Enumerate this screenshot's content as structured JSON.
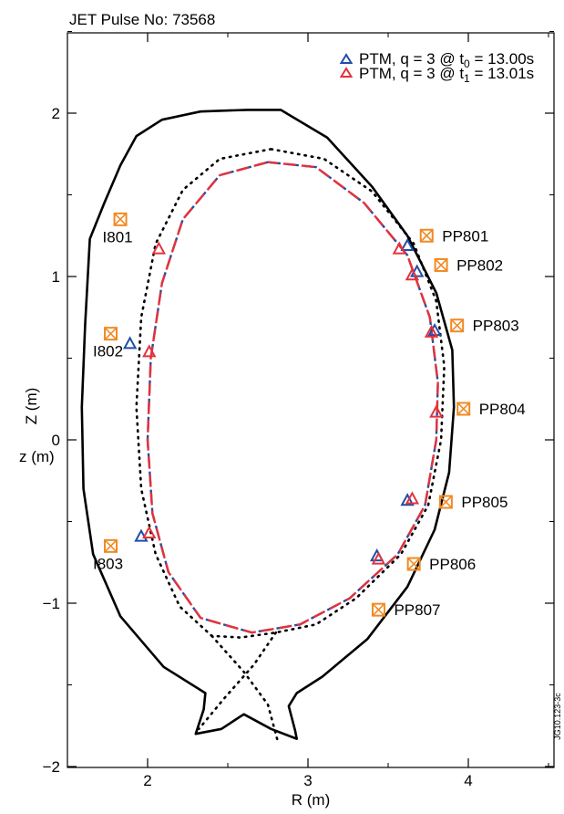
{
  "chart_data": {
    "type": "scatter",
    "title": "JET Pulse No: 73568",
    "xlabel": "R (m)",
    "ylabel": "Z (m)",
    "ylabel_overlay": "z (m)",
    "watermark": "JG10.123-3c",
    "xlim": [
      1.5,
      4.55
    ],
    "ylim": [
      -2.0,
      2.5
    ],
    "x_ticks": [
      2,
      3,
      4
    ],
    "y_ticks": [
      -2,
      -1,
      0,
      1,
      2
    ],
    "grid": false,
    "legend_position": "top-right",
    "colors": {
      "t0": "#1f4fa8",
      "t1": "#e3323c",
      "coil": "#f08a24",
      "wall": "#000000"
    },
    "series": [
      {
        "name": "PTM, q = 3 @ t0 = 13.00s",
        "legend_text": "PTM, q = 3 @ t",
        "legend_sub": "0",
        "legend_tail": " = 13.00s",
        "marker": "triangle",
        "color": "#1f4fa8",
        "points": [
          [
            3.62,
            1.19
          ],
          [
            3.68,
            1.03
          ],
          [
            3.79,
            0.67
          ],
          [
            1.89,
            0.59
          ],
          [
            3.62,
            -0.37
          ],
          [
            1.96,
            -0.59
          ],
          [
            3.43,
            -0.71
          ]
        ]
      },
      {
        "name": "PTM, q = 3 @ t1 = 13.01s",
        "legend_text": "PTM, q = 3 @ t",
        "legend_sub": "1",
        "legend_tail": " = 13.01s",
        "marker": "triangle",
        "color": "#e3323c",
        "points": [
          [
            2.07,
            1.17
          ],
          [
            3.57,
            1.17
          ],
          [
            3.65,
            1.01
          ],
          [
            3.77,
            0.66
          ],
          [
            2.01,
            0.54
          ],
          [
            3.8,
            0.17
          ],
          [
            3.65,
            -0.36
          ],
          [
            2.01,
            -0.57
          ],
          [
            3.44,
            -0.73
          ]
        ]
      }
    ],
    "coils": [
      {
        "label": "I801",
        "r": 1.83,
        "z": 1.35
      },
      {
        "label": "I802",
        "r": 1.77,
        "z": 0.65
      },
      {
        "label": "I803",
        "r": 1.77,
        "z": -0.65
      },
      {
        "label": "PP801",
        "r": 3.74,
        "z": 1.25
      },
      {
        "label": "PP802",
        "r": 3.83,
        "z": 1.07
      },
      {
        "label": "PP803",
        "r": 3.93,
        "z": 0.7
      },
      {
        "label": "PP804",
        "r": 3.97,
        "z": 0.19
      },
      {
        "label": "PP805",
        "r": 3.86,
        "z": -0.38
      },
      {
        "label": "PP806",
        "r": 3.66,
        "z": -0.76
      },
      {
        "label": "PP807",
        "r": 3.44,
        "z": -1.04
      }
    ],
    "first_wall": [
      [
        1.64,
        1.23
      ],
      [
        1.73,
        1.45
      ],
      [
        1.83,
        1.68
      ],
      [
        1.93,
        1.86
      ],
      [
        2.09,
        1.96
      ],
      [
        2.33,
        2.01
      ],
      [
        2.62,
        2.02
      ],
      [
        2.83,
        2.02
      ],
      [
        3.12,
        1.85
      ],
      [
        3.4,
        1.55
      ],
      [
        3.62,
        1.25
      ],
      [
        3.8,
        0.9
      ],
      [
        3.9,
        0.55
      ],
      [
        3.91,
        0.2
      ],
      [
        3.88,
        -0.2
      ],
      [
        3.79,
        -0.55
      ],
      [
        3.62,
        -0.9
      ],
      [
        3.37,
        -1.22
      ],
      [
        3.09,
        -1.45
      ],
      [
        2.93,
        -1.55
      ],
      [
        2.88,
        -1.63
      ],
      [
        2.92,
        -1.78
      ],
      [
        2.93,
        -1.83
      ],
      [
        2.77,
        -1.77
      ],
      [
        2.6,
        -1.68
      ],
      [
        2.46,
        -1.77
      ],
      [
        2.3,
        -1.8
      ],
      [
        2.35,
        -1.65
      ],
      [
        2.36,
        -1.55
      ],
      [
        2.1,
        -1.39
      ],
      [
        1.83,
        -1.08
      ],
      [
        1.66,
        -0.7
      ],
      [
        1.6,
        -0.3
      ],
      [
        1.59,
        0.2
      ],
      [
        1.61,
        0.7
      ],
      [
        1.64,
        1.23
      ]
    ],
    "lcfs": [
      [
        2.75,
        1.7
      ],
      [
        3.05,
        1.67
      ],
      [
        3.35,
        1.45
      ],
      [
        3.62,
        1.13
      ],
      [
        3.76,
        0.75
      ],
      [
        3.81,
        0.35
      ],
      [
        3.8,
        0.0
      ],
      [
        3.73,
        -0.4
      ],
      [
        3.56,
        -0.7
      ],
      [
        3.26,
        -0.97
      ],
      [
        2.95,
        -1.13
      ],
      [
        2.65,
        -1.18
      ],
      [
        2.33,
        -1.09
      ],
      [
        2.13,
        -0.81
      ],
      [
        2.03,
        -0.45
      ],
      [
        2.0,
        0.0
      ],
      [
        2.02,
        0.5
      ],
      [
        2.09,
        0.96
      ],
      [
        2.22,
        1.35
      ],
      [
        2.45,
        1.62
      ],
      [
        2.75,
        1.7
      ]
    ],
    "separatrix": [
      [
        2.77,
        1.78
      ],
      [
        3.1,
        1.72
      ],
      [
        3.4,
        1.52
      ],
      [
        3.66,
        1.2
      ],
      [
        3.8,
        0.85
      ],
      [
        3.85,
        0.45
      ],
      [
        3.83,
        0.0
      ],
      [
        3.75,
        -0.4
      ],
      [
        3.58,
        -0.7
      ],
      [
        3.3,
        -0.97
      ],
      [
        3.05,
        -1.13
      ],
      [
        2.8,
        -1.18
      ],
      [
        2.58,
        -1.21
      ],
      [
        2.4,
        -1.2
      ],
      [
        2.2,
        -1.02
      ],
      [
        2.05,
        -0.7
      ],
      [
        1.96,
        -0.3
      ],
      [
        1.93,
        0.2
      ],
      [
        1.96,
        0.75
      ],
      [
        2.05,
        1.2
      ],
      [
        2.22,
        1.53
      ],
      [
        2.45,
        1.72
      ],
      [
        2.77,
        1.78
      ]
    ],
    "divertor_legs": [
      [
        [
          2.8,
          -1.18
        ],
        [
          2.66,
          -1.38
        ],
        [
          2.48,
          -1.58
        ],
        [
          2.32,
          -1.77
        ]
      ],
      [
        [
          2.4,
          -1.2
        ],
        [
          2.6,
          -1.42
        ],
        [
          2.75,
          -1.62
        ],
        [
          2.81,
          -1.84
        ]
      ]
    ]
  }
}
